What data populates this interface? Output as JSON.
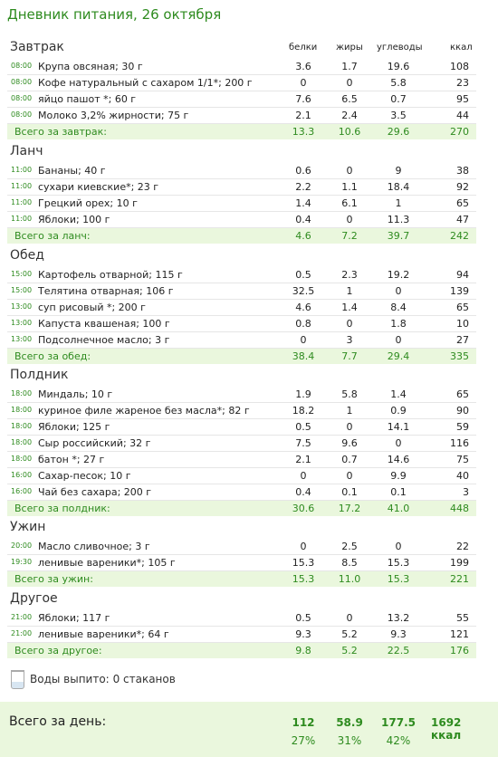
{
  "title": "Дневник питания, 26 октября",
  "columns": {
    "protein": "белки",
    "fat": "жиры",
    "carbs": "углеводы",
    "kcal": "ккал"
  },
  "meals": [
    {
      "name": "Завтрак",
      "total_label": "Всего за завтрак:",
      "items": [
        {
          "time": "08:00",
          "name": "Крупа овсяная; 30 г",
          "p": "3.6",
          "f": "1.7",
          "c": "19.6",
          "k": "108"
        },
        {
          "time": "08:00",
          "name": "Кофе натуральный  с сахаром 1/1*; 200 г",
          "p": "0",
          "f": "0",
          "c": "5.8",
          "k": "23"
        },
        {
          "time": "08:00",
          "name": "яйцо пашот *; 60 г",
          "p": "7.6",
          "f": "6.5",
          "c": "0.7",
          "k": "95"
        },
        {
          "time": "08:00",
          "name": "Молоко 3,2% жирности; 75 г",
          "p": "2.1",
          "f": "2.4",
          "c": "3.5",
          "k": "44"
        }
      ],
      "total": {
        "p": "13.3",
        "f": "10.6",
        "c": "29.6",
        "k": "270"
      }
    },
    {
      "name": "Ланч",
      "total_label": "Всего за ланч:",
      "items": [
        {
          "time": "11:00",
          "name": "Бананы; 40 г",
          "p": "0.6",
          "f": "0",
          "c": "9",
          "k": "38"
        },
        {
          "time": "11:00",
          "name": "сухари киевские*; 23 г",
          "p": "2.2",
          "f": "1.1",
          "c": "18.4",
          "k": "92"
        },
        {
          "time": "11:00",
          "name": "Грецкий орех; 10 г",
          "p": "1.4",
          "f": "6.1",
          "c": "1",
          "k": "65"
        },
        {
          "time": "11:00",
          "name": "Яблоки; 100 г",
          "p": "0.4",
          "f": "0",
          "c": "11.3",
          "k": "47"
        }
      ],
      "total": {
        "p": "4.6",
        "f": "7.2",
        "c": "39.7",
        "k": "242"
      }
    },
    {
      "name": "Обед",
      "total_label": "Всего за обед:",
      "items": [
        {
          "time": "15:00",
          "name": "Картофель отварной; 115 г",
          "p": "0.5",
          "f": "2.3",
          "c": "19.2",
          "k": "94"
        },
        {
          "time": "15:00",
          "name": "Телятина отварная; 106 г",
          "p": "32.5",
          "f": "1",
          "c": "0",
          "k": "139"
        },
        {
          "time": "13:00",
          "name": "суп рисовый *; 200 г",
          "p": "4.6",
          "f": "1.4",
          "c": "8.4",
          "k": "65"
        },
        {
          "time": "13:00",
          "name": "Капуста квашеная; 100 г",
          "p": "0.8",
          "f": "0",
          "c": "1.8",
          "k": "10"
        },
        {
          "time": "13:00",
          "name": "Подсолнечное масло; 3 г",
          "p": "0",
          "f": "3",
          "c": "0",
          "k": "27"
        }
      ],
      "total": {
        "p": "38.4",
        "f": "7.7",
        "c": "29.4",
        "k": "335"
      }
    },
    {
      "name": "Полдник",
      "total_label": "Всего за полдник:",
      "items": [
        {
          "time": "18:00",
          "name": "Миндаль; 10 г",
          "p": "1.9",
          "f": "5.8",
          "c": "1.4",
          "k": "65"
        },
        {
          "time": "18:00",
          "name": "куриное филе жареное без масла*; 82 г",
          "p": "18.2",
          "f": "1",
          "c": "0.9",
          "k": "90"
        },
        {
          "time": "18:00",
          "name": "Яблоки; 125 г",
          "p": "0.5",
          "f": "0",
          "c": "14.1",
          "k": "59"
        },
        {
          "time": "18:00",
          "name": "Сыр российский; 32 г",
          "p": "7.5",
          "f": "9.6",
          "c": "0",
          "k": "116"
        },
        {
          "time": "18:00",
          "name": "батон *; 27 г",
          "p": "2.1",
          "f": "0.7",
          "c": "14.6",
          "k": "75"
        },
        {
          "time": "16:00",
          "name": "Сахар-песок; 10 г",
          "p": "0",
          "f": "0",
          "c": "9.9",
          "k": "40"
        },
        {
          "time": "16:00",
          "name": "Чай без сахара; 200 г",
          "p": "0.4",
          "f": "0.1",
          "c": "0.1",
          "k": "3"
        }
      ],
      "total": {
        "p": "30.6",
        "f": "17.2",
        "c": "41.0",
        "k": "448"
      }
    },
    {
      "name": "Ужин",
      "total_label": "Всего за ужин:",
      "items": [
        {
          "time": "20:00",
          "name": "Масло сливочное; 3 г",
          "p": "0",
          "f": "2.5",
          "c": "0",
          "k": "22"
        },
        {
          "time": "19:30",
          "name": "ленивые вареники*; 105 г",
          "p": "15.3",
          "f": "8.5",
          "c": "15.3",
          "k": "199"
        }
      ],
      "total": {
        "p": "15.3",
        "f": "11.0",
        "c": "15.3",
        "k": "221"
      }
    },
    {
      "name": "Другое",
      "total_label": "Всего за другое:",
      "items": [
        {
          "time": "21:00",
          "name": "Яблоки; 117 г",
          "p": "0.5",
          "f": "0",
          "c": "13.2",
          "k": "55"
        },
        {
          "time": "21:00",
          "name": "ленивые вареники*; 64 г",
          "p": "9.3",
          "f": "5.2",
          "c": "9.3",
          "k": "121"
        }
      ],
      "total": {
        "p": "9.8",
        "f": "5.2",
        "c": "22.5",
        "k": "176"
      }
    }
  ],
  "water": {
    "label": "Воды выпито:",
    "value": "0 стаканов"
  },
  "day": {
    "label": "Всего за день:",
    "p": "112",
    "f": "58.9",
    "c": "177.5",
    "k": "1692 ккал",
    "pp": "27%",
    "fp": "31%",
    "cp": "42%"
  }
}
